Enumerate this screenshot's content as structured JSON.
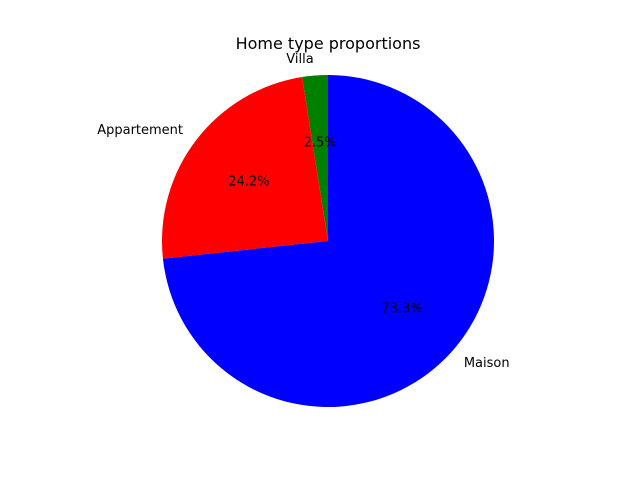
{
  "chart_data": {
    "type": "pie",
    "title": "Home type proportions",
    "slices": [
      {
        "label": "Maison",
        "value": 73.3,
        "pct_label": "73.3%",
        "color": "#0000ff"
      },
      {
        "label": "Appartement",
        "value": 24.2,
        "pct_label": "24.2%",
        "color": "#ff0000"
      },
      {
        "label": "Villa",
        "value": 2.5,
        "pct_label": "2.5%",
        "color": "#008000"
      }
    ],
    "start_angle": 90,
    "direction": "counterclockwise_from_top_by_reverse_order",
    "legend": "none"
  }
}
